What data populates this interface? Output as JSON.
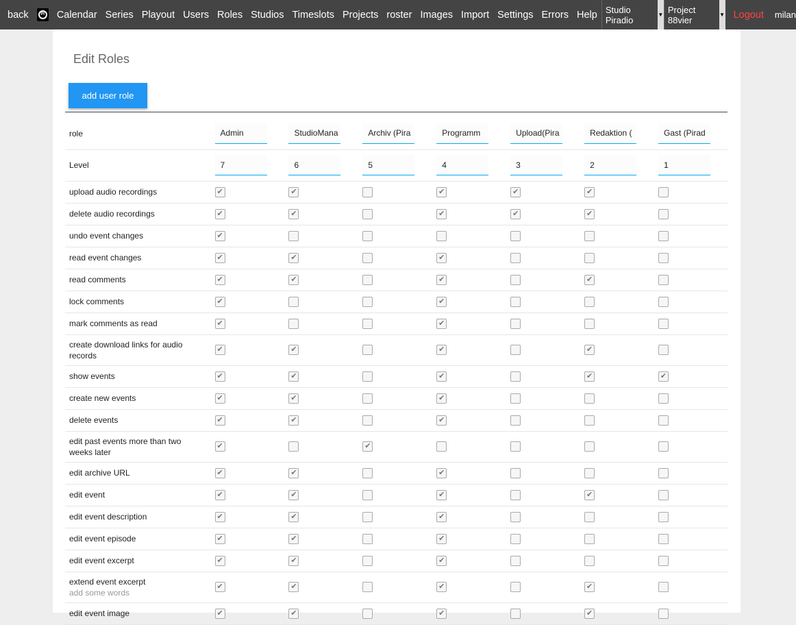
{
  "nav": {
    "back": "back",
    "logo_text": "PI",
    "items": [
      "Calendar",
      "Series",
      "Playout",
      "Users",
      "Roles",
      "Studios",
      "Timeslots",
      "Projects",
      "roster",
      "Images",
      "Import",
      "Settings",
      "Errors",
      "Help"
    ],
    "studio_select": "Studio Piradio",
    "project_select": "Project 88vier",
    "logout": "Logout",
    "user": "milan"
  },
  "page": {
    "title": "Edit Roles",
    "add_button": "add user role"
  },
  "table": {
    "role_label": "role",
    "level_label": "Level",
    "roles": [
      "StudioMana",
      "Archiv (Pira",
      "Programm",
      "Upload(Pira",
      "Redaktion (",
      "Gast (Pirad"
    ],
    "role_names": [
      "Admin",
      "StudioMana",
      "Archiv (Pira",
      "Programm",
      "Upload(Pira",
      "Redaktion (",
      "Gast (Pirad"
    ],
    "levels": [
      "7",
      "6",
      "5",
      "4",
      "3",
      "2",
      "1"
    ],
    "permissions": [
      {
        "label": "upload audio recordings",
        "values": [
          1,
          1,
          0,
          1,
          1,
          1,
          0
        ]
      },
      {
        "label": "delete audio recordings",
        "values": [
          1,
          1,
          0,
          1,
          1,
          1,
          0
        ]
      },
      {
        "label": "undo event changes",
        "values": [
          1,
          0,
          0,
          0,
          0,
          0,
          0
        ]
      },
      {
        "label": "read event changes",
        "values": [
          1,
          1,
          0,
          1,
          0,
          0,
          0
        ]
      },
      {
        "label": "read comments",
        "values": [
          1,
          1,
          0,
          1,
          0,
          1,
          0
        ]
      },
      {
        "label": "lock comments",
        "values": [
          1,
          0,
          0,
          1,
          0,
          0,
          0
        ]
      },
      {
        "label": "mark comments as read",
        "values": [
          1,
          0,
          0,
          1,
          0,
          0,
          0
        ]
      },
      {
        "label": "create download links for audio records",
        "values": [
          1,
          1,
          0,
          1,
          0,
          1,
          0
        ]
      },
      {
        "label": "show events",
        "values": [
          1,
          1,
          0,
          1,
          0,
          1,
          1
        ]
      },
      {
        "label": "create new events",
        "values": [
          1,
          1,
          0,
          1,
          0,
          0,
          0
        ]
      },
      {
        "label": "delete events",
        "values": [
          1,
          1,
          0,
          1,
          0,
          0,
          0
        ]
      },
      {
        "label": "edit past events more than two weeks later",
        "values": [
          1,
          0,
          1,
          0,
          0,
          0,
          0
        ]
      },
      {
        "label": "edit archive URL",
        "values": [
          1,
          1,
          0,
          1,
          0,
          0,
          0
        ]
      },
      {
        "label": "edit event",
        "values": [
          1,
          1,
          0,
          1,
          0,
          1,
          0
        ]
      },
      {
        "label": "edit event description",
        "values": [
          1,
          1,
          0,
          1,
          0,
          0,
          0
        ]
      },
      {
        "label": "edit event episode",
        "values": [
          1,
          1,
          0,
          1,
          0,
          0,
          0
        ]
      },
      {
        "label": "edit event excerpt",
        "values": [
          1,
          1,
          0,
          1,
          0,
          0,
          0
        ]
      },
      {
        "label": "extend event excerpt",
        "sub": "add some words",
        "values": [
          1,
          1,
          0,
          1,
          0,
          1,
          0
        ]
      },
      {
        "label": "edit event image",
        "values": [
          1,
          1,
          0,
          1,
          0,
          1,
          0
        ]
      }
    ]
  }
}
